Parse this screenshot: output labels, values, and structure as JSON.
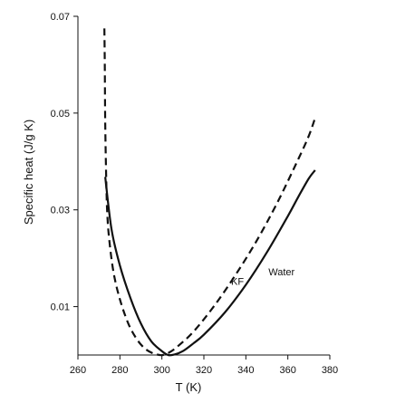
{
  "chart_data": {
    "type": "line",
    "title": "",
    "xlabel": "T (K)",
    "ylabel": "Specific heat (J/g K)",
    "xlim": [
      260,
      380
    ],
    "ylim": [
      0.0,
      0.07
    ],
    "xticks": [
      260,
      280,
      300,
      320,
      340,
      360,
      380
    ],
    "yticks": [
      0.01,
      0.03,
      0.05,
      0.07
    ],
    "xtick_labels": [
      "260",
      "280",
      "300",
      "320",
      "340",
      "360",
      "380"
    ],
    "ytick_labels": [
      "0.01",
      "0.03",
      "0.05",
      "0.07"
    ],
    "grid": false,
    "legend": "none",
    "series": [
      {
        "name": "Water",
        "style": "solid",
        "color": "#111111",
        "x": [
          273,
          276,
          280,
          285,
          290,
          295,
          300,
          303,
          306,
          310,
          315,
          320,
          330,
          340,
          350,
          360,
          365,
          370,
          373
        ],
        "y": [
          0.0368,
          0.026,
          0.0185,
          0.0118,
          0.0065,
          0.0028,
          0.0008,
          0.0,
          0.0001,
          0.0008,
          0.0024,
          0.0042,
          0.0088,
          0.0145,
          0.0212,
          0.0287,
          0.0327,
          0.0365,
          0.0382
        ]
      },
      {
        "name": "KF",
        "style": "dashed",
        "color": "#111111",
        "x": [
          272.6,
          272.8,
          273,
          273.5,
          274,
          275,
          277,
          280,
          284,
          288,
          292,
          296,
          299,
          300.5,
          303,
          307,
          315,
          325,
          335,
          345,
          355,
          365,
          370,
          373
        ],
        "y": [
          0.0675,
          0.06,
          0.048,
          0.036,
          0.029,
          0.0235,
          0.017,
          0.0115,
          0.0065,
          0.0033,
          0.0013,
          0.0003,
          0.0,
          0.0,
          0.0004,
          0.0016,
          0.0048,
          0.0102,
          0.0165,
          0.0235,
          0.0315,
          0.0405,
          0.0453,
          0.049
        ]
      }
    ],
    "annotations": [
      {
        "text": "KF",
        "x": 336,
        "y": 0.0145
      },
      {
        "text": "Water",
        "x": 357,
        "y": 0.0165
      }
    ]
  }
}
